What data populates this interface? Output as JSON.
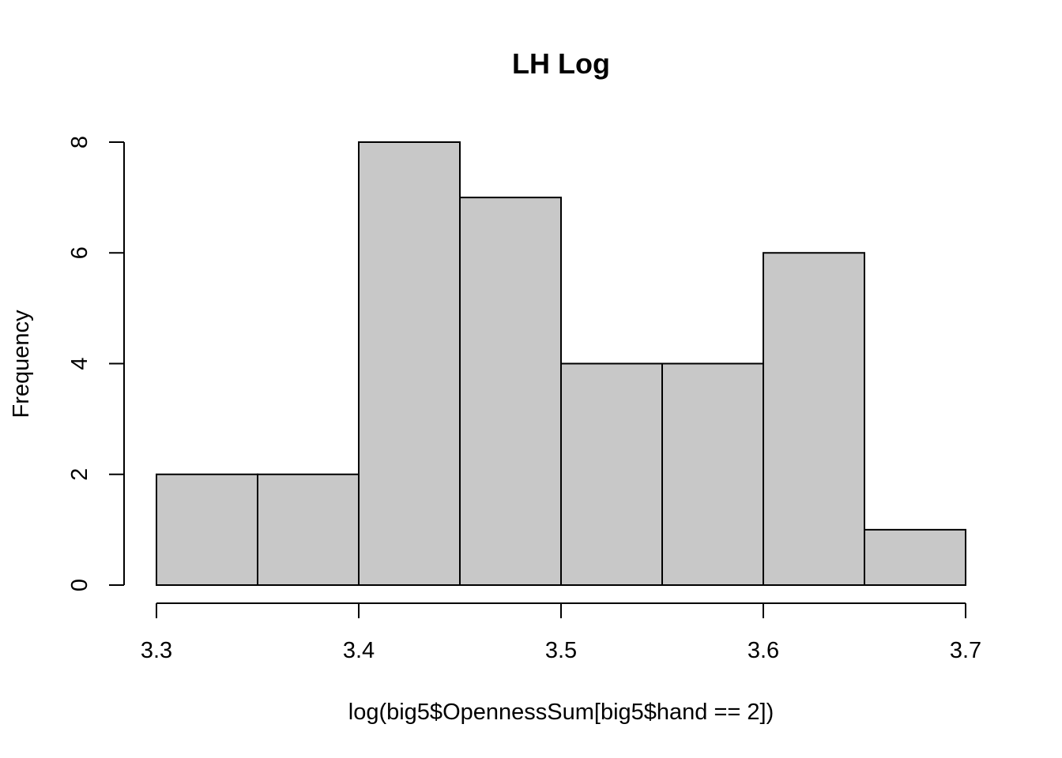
{
  "chart_data": {
    "type": "bar",
    "title": "LH Log",
    "xlabel": "log(big5$OpennessSum[big5$hand == 2])",
    "ylabel": "Frequency",
    "bins": [
      {
        "start": 3.3,
        "end": 3.35,
        "count": 2
      },
      {
        "start": 3.35,
        "end": 3.4,
        "count": 2
      },
      {
        "start": 3.4,
        "end": 3.45,
        "count": 8
      },
      {
        "start": 3.45,
        "end": 3.5,
        "count": 7
      },
      {
        "start": 3.5,
        "end": 3.55,
        "count": 4
      },
      {
        "start": 3.55,
        "end": 3.6,
        "count": 4
      },
      {
        "start": 3.6,
        "end": 3.65,
        "count": 6
      },
      {
        "start": 3.65,
        "end": 3.7,
        "count": 1
      }
    ],
    "xlim": [
      3.3,
      3.7
    ],
    "ylim": [
      0,
      8
    ],
    "x_ticks": [
      "3.3",
      "3.4",
      "3.5",
      "3.6",
      "3.7"
    ],
    "y_ticks": [
      "0",
      "2",
      "4",
      "6",
      "8"
    ],
    "bar_color": "#c8c8c8",
    "grid": false
  }
}
